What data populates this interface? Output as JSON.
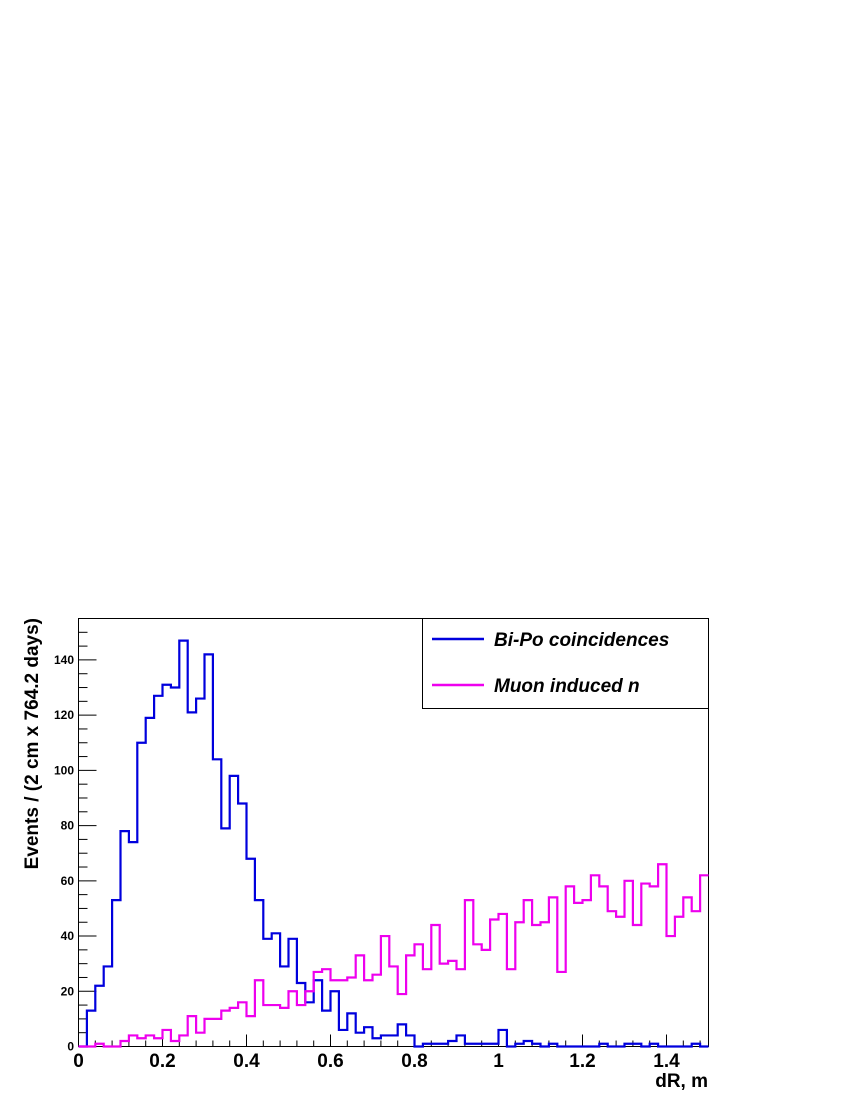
{
  "chart_data": {
    "type": "line",
    "step": true,
    "xlabel": "dR, m",
    "ylabel": "Events / (2 cm x 764.2 days)",
    "xlim": [
      0,
      1.5
    ],
    "ylim": [
      0,
      155
    ],
    "bin_width": 0.02,
    "x_ticks": [
      0,
      0.2,
      0.4,
      0.6,
      0.8,
      1,
      1.2,
      1.4
    ],
    "x_tick_labels": [
      "0",
      "0.2",
      "0.4",
      "0.6",
      "0.8",
      "1",
      "1.2",
      "1.4"
    ],
    "y_ticks": [
      0,
      20,
      40,
      60,
      80,
      100,
      120,
      140
    ],
    "y_tick_labels": [
      "0",
      "20",
      "40",
      "60",
      "80",
      "100",
      "120",
      "140"
    ],
    "legend_position": "top-right",
    "grid": false,
    "series": [
      {
        "name": "Bi-Po coincidences",
        "color": "#0000dd",
        "values": [
          0,
          13,
          22,
          29,
          53,
          78,
          74,
          110,
          119,
          127,
          131,
          130,
          147,
          121,
          126,
          142,
          104,
          79,
          98,
          88,
          68,
          53,
          39,
          41,
          29,
          39,
          23,
          16,
          24,
          13,
          20,
          6,
          12,
          5,
          7,
          3,
          4,
          4,
          8,
          4,
          0,
          1,
          1,
          1,
          2,
          4,
          1,
          1,
          1,
          1,
          6,
          0,
          1,
          2,
          1,
          0,
          1,
          0,
          0,
          0,
          0,
          0,
          1,
          0,
          0,
          1,
          1,
          0,
          1,
          0,
          0,
          0,
          0,
          1,
          0
        ]
      },
      {
        "name": "Muon induced n",
        "color": "#ee00ee",
        "values": [
          0,
          0,
          1,
          0,
          0,
          2,
          4,
          3,
          4,
          3,
          6,
          2,
          4,
          11,
          5,
          10,
          10,
          13,
          14,
          16,
          11,
          24,
          15,
          15,
          14,
          20,
          15,
          20,
          27,
          28,
          24,
          24,
          25,
          33,
          24,
          26,
          40,
          29,
          19,
          33,
          37,
          28,
          44,
          30,
          31,
          28,
          53,
          37,
          35,
          46,
          48,
          28,
          45,
          53,
          44,
          45,
          54,
          27,
          58,
          52,
          53,
          62,
          58,
          49,
          47,
          60,
          44,
          59,
          58,
          66,
          40,
          47,
          54,
          49,
          62
        ]
      }
    ]
  }
}
